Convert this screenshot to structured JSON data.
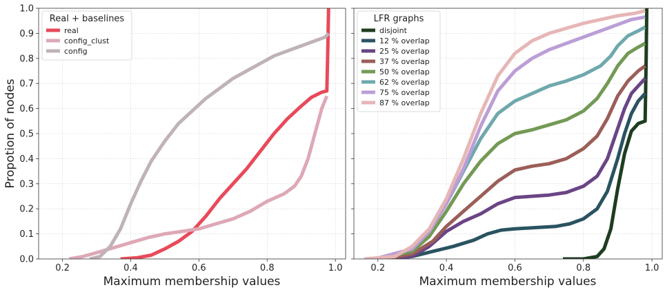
{
  "chart_data": [
    {
      "type": "line",
      "xlabel": "Maximum membership values",
      "ylabel": "Propotion of nodes",
      "xlim": [
        0.13,
        1.03
      ],
      "ylim": [
        0,
        1
      ],
      "xticks": [
        "0.2",
        "0.4",
        "0.6",
        "0.8",
        "1.0"
      ],
      "yticks": [
        "0.0",
        "0.1",
        "0.2",
        "0.3",
        "0.4",
        "0.5",
        "0.6",
        "0.7",
        "0.8",
        "0.9",
        "1.0"
      ],
      "grid": true,
      "legend": {
        "title": "Real + baselines",
        "placement": "top-left"
      },
      "series": [
        {
          "name": "real",
          "color": "#e84a5a",
          "points": [
            [
              0.37,
              0.0
            ],
            [
              0.42,
              0.005
            ],
            [
              0.46,
              0.015
            ],
            [
              0.5,
              0.04
            ],
            [
              0.54,
              0.07
            ],
            [
              0.58,
              0.11
            ],
            [
              0.62,
              0.17
            ],
            [
              0.66,
              0.24
            ],
            [
              0.7,
              0.3
            ],
            [
              0.74,
              0.36
            ],
            [
              0.78,
              0.43
            ],
            [
              0.82,
              0.5
            ],
            [
              0.86,
              0.56
            ],
            [
              0.9,
              0.61
            ],
            [
              0.93,
              0.645
            ],
            [
              0.96,
              0.665
            ],
            [
              0.975,
              0.67
            ],
            [
              0.978,
              0.85
            ],
            [
              0.98,
              1.0
            ]
          ]
        },
        {
          "name": "config_clust",
          "color": "#dea8b6",
          "points": [
            [
              0.22,
              0.0
            ],
            [
              0.26,
              0.01
            ],
            [
              0.3,
              0.025
            ],
            [
              0.35,
              0.045
            ],
            [
              0.4,
              0.065
            ],
            [
              0.45,
              0.085
            ],
            [
              0.5,
              0.1
            ],
            [
              0.55,
              0.11
            ],
            [
              0.6,
              0.12
            ],
            [
              0.65,
              0.14
            ],
            [
              0.7,
              0.16
            ],
            [
              0.75,
              0.19
            ],
            [
              0.8,
              0.23
            ],
            [
              0.85,
              0.26
            ],
            [
              0.88,
              0.29
            ],
            [
              0.9,
              0.33
            ],
            [
              0.92,
              0.4
            ],
            [
              0.94,
              0.5
            ],
            [
              0.96,
              0.6
            ],
            [
              0.975,
              0.65
            ]
          ]
        },
        {
          "name": "config",
          "color": "#bfb3b8",
          "points": [
            [
              0.28,
              0.0
            ],
            [
              0.31,
              0.01
            ],
            [
              0.34,
              0.05
            ],
            [
              0.37,
              0.12
            ],
            [
              0.4,
              0.22
            ],
            [
              0.43,
              0.31
            ],
            [
              0.46,
              0.39
            ],
            [
              0.5,
              0.47
            ],
            [
              0.54,
              0.54
            ],
            [
              0.58,
              0.59
            ],
            [
              0.62,
              0.64
            ],
            [
              0.66,
              0.68
            ],
            [
              0.7,
              0.72
            ],
            [
              0.74,
              0.75
            ],
            [
              0.78,
              0.78
            ],
            [
              0.82,
              0.81
            ],
            [
              0.86,
              0.83
            ],
            [
              0.9,
              0.85
            ],
            [
              0.94,
              0.87
            ],
            [
              0.97,
              0.885
            ],
            [
              0.98,
              0.9
            ]
          ]
        }
      ]
    },
    {
      "type": "line",
      "xlabel": "Maximum membership values",
      "ylabel": "",
      "xlim": [
        0.13,
        1.03
      ],
      "ylim": [
        0,
        1
      ],
      "xticks": [
        "0.2",
        "0.4",
        "0.6",
        "0.8",
        "1.0"
      ],
      "grid": true,
      "legend": {
        "title": "LFR graphs",
        "placement": "top-left"
      },
      "series": [
        {
          "name": "disjoint",
          "color": "#1f3d1f",
          "points": [
            [
              0.74,
              0.0
            ],
            [
              0.8,
              0.0
            ],
            [
              0.84,
              0.01
            ],
            [
              0.86,
              0.04
            ],
            [
              0.88,
              0.12
            ],
            [
              0.9,
              0.28
            ],
            [
              0.92,
              0.42
            ],
            [
              0.94,
              0.51
            ],
            [
              0.96,
              0.54
            ],
            [
              0.98,
              0.55
            ],
            [
              0.983,
              0.8
            ],
            [
              0.985,
              1.0
            ]
          ]
        },
        {
          "name": "12 % overlap",
          "color": "#2a5360",
          "points": [
            [
              0.22,
              0.0
            ],
            [
              0.3,
              0.01
            ],
            [
              0.36,
              0.03
            ],
            [
              0.42,
              0.05
            ],
            [
              0.48,
              0.075
            ],
            [
              0.52,
              0.1
            ],
            [
              0.56,
              0.115
            ],
            [
              0.6,
              0.12
            ],
            [
              0.66,
              0.125
            ],
            [
              0.72,
              0.13
            ],
            [
              0.76,
              0.14
            ],
            [
              0.8,
              0.16
            ],
            [
              0.84,
              0.2
            ],
            [
              0.87,
              0.27
            ],
            [
              0.9,
              0.4
            ],
            [
              0.92,
              0.5
            ],
            [
              0.94,
              0.58
            ],
            [
              0.96,
              0.63
            ],
            [
              0.98,
              0.66
            ]
          ]
        },
        {
          "name": "25 % overlap",
          "color": "#6a4585",
          "points": [
            [
              0.23,
              0.0
            ],
            [
              0.3,
              0.01
            ],
            [
              0.35,
              0.05
            ],
            [
              0.4,
              0.11
            ],
            [
              0.45,
              0.15
            ],
            [
              0.5,
              0.18
            ],
            [
              0.55,
              0.22
            ],
            [
              0.6,
              0.245
            ],
            [
              0.65,
              0.25
            ],
            [
              0.7,
              0.255
            ],
            [
              0.75,
              0.265
            ],
            [
              0.8,
              0.29
            ],
            [
              0.84,
              0.33
            ],
            [
              0.87,
              0.4
            ],
            [
              0.9,
              0.52
            ],
            [
              0.92,
              0.6
            ],
            [
              0.94,
              0.66
            ],
            [
              0.96,
              0.69
            ],
            [
              0.98,
              0.72
            ]
          ]
        },
        {
          "name": "37 % overlap",
          "color": "#9b5e58",
          "points": [
            [
              0.22,
              0.0
            ],
            [
              0.3,
              0.02
            ],
            [
              0.36,
              0.07
            ],
            [
              0.4,
              0.13
            ],
            [
              0.45,
              0.19
            ],
            [
              0.5,
              0.25
            ],
            [
              0.55,
              0.31
            ],
            [
              0.6,
              0.355
            ],
            [
              0.65,
              0.37
            ],
            [
              0.7,
              0.38
            ],
            [
              0.75,
              0.4
            ],
            [
              0.8,
              0.44
            ],
            [
              0.84,
              0.49
            ],
            [
              0.87,
              0.56
            ],
            [
              0.9,
              0.65
            ],
            [
              0.93,
              0.71
            ],
            [
              0.96,
              0.75
            ],
            [
              0.98,
              0.77
            ]
          ]
        },
        {
          "name": "50 % overlap",
          "color": "#739a55",
          "points": [
            [
              0.2,
              0.0
            ],
            [
              0.3,
              0.03
            ],
            [
              0.35,
              0.09
            ],
            [
              0.4,
              0.19
            ],
            [
              0.45,
              0.3
            ],
            [
              0.5,
              0.39
            ],
            [
              0.55,
              0.46
            ],
            [
              0.6,
              0.5
            ],
            [
              0.65,
              0.515
            ],
            [
              0.7,
              0.535
            ],
            [
              0.75,
              0.555
            ],
            [
              0.8,
              0.59
            ],
            [
              0.84,
              0.64
            ],
            [
              0.87,
              0.7
            ],
            [
              0.9,
              0.77
            ],
            [
              0.93,
              0.82
            ],
            [
              0.96,
              0.845
            ],
            [
              0.98,
              0.86
            ]
          ]
        },
        {
          "name": "62 % overlap",
          "color": "#6fa8ad",
          "points": [
            [
              0.2,
              0.0
            ],
            [
              0.3,
              0.04
            ],
            [
              0.35,
              0.11
            ],
            [
              0.4,
              0.22
            ],
            [
              0.45,
              0.35
            ],
            [
              0.5,
              0.48
            ],
            [
              0.55,
              0.58
            ],
            [
              0.6,
              0.63
            ],
            [
              0.65,
              0.66
            ],
            [
              0.7,
              0.69
            ],
            [
              0.75,
              0.71
            ],
            [
              0.8,
              0.735
            ],
            [
              0.85,
              0.77
            ],
            [
              0.88,
              0.81
            ],
            [
              0.9,
              0.85
            ],
            [
              0.93,
              0.89
            ],
            [
              0.96,
              0.91
            ],
            [
              0.98,
              0.925
            ]
          ]
        },
        {
          "name": "75 % overlap",
          "color": "#bb9ed6",
          "points": [
            [
              0.19,
              0.0
            ],
            [
              0.3,
              0.04
            ],
            [
              0.35,
              0.11
            ],
            [
              0.4,
              0.22
            ],
            [
              0.45,
              0.36
            ],
            [
              0.5,
              0.53
            ],
            [
              0.55,
              0.67
            ],
            [
              0.6,
              0.75
            ],
            [
              0.65,
              0.8
            ],
            [
              0.7,
              0.835
            ],
            [
              0.75,
              0.86
            ],
            [
              0.8,
              0.885
            ],
            [
              0.85,
              0.91
            ],
            [
              0.9,
              0.935
            ],
            [
              0.94,
              0.955
            ],
            [
              0.98,
              0.965
            ]
          ]
        },
        {
          "name": "87 % overlap",
          "color": "#e6b6b6",
          "points": [
            [
              0.16,
              0.0
            ],
            [
              0.25,
              0.01
            ],
            [
              0.3,
              0.05
            ],
            [
              0.35,
              0.12
            ],
            [
              0.4,
              0.24
            ],
            [
              0.45,
              0.4
            ],
            [
              0.5,
              0.58
            ],
            [
              0.55,
              0.73
            ],
            [
              0.6,
              0.82
            ],
            [
              0.65,
              0.87
            ],
            [
              0.7,
              0.9
            ],
            [
              0.75,
              0.92
            ],
            [
              0.8,
              0.94
            ],
            [
              0.85,
              0.955
            ],
            [
              0.9,
              0.97
            ],
            [
              0.95,
              0.98
            ],
            [
              0.98,
              0.99
            ]
          ]
        }
      ]
    }
  ]
}
